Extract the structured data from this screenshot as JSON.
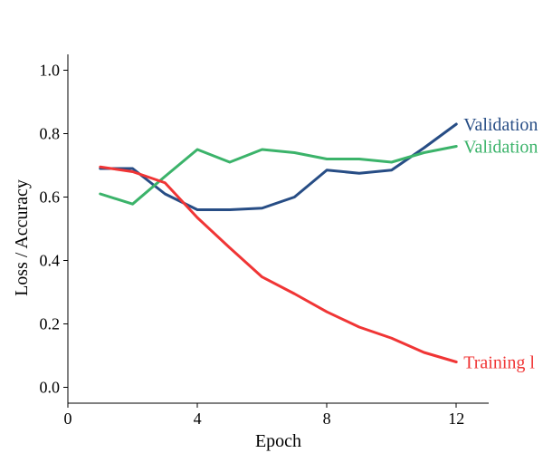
{
  "chart_data": {
    "type": "line",
    "xlabel": "Epoch",
    "ylabel": "Loss / Accuracy",
    "xlim": [
      0,
      13
    ],
    "ylim": [
      -0.05,
      1.05
    ],
    "xticks": [
      {
        "value": 0,
        "label": "0"
      },
      {
        "value": 4,
        "label": "4"
      },
      {
        "value": 8,
        "label": "8"
      },
      {
        "value": 12,
        "label": "12"
      }
    ],
    "yticks": [
      {
        "value": 0.0,
        "label": "0.0"
      },
      {
        "value": 0.2,
        "label": "0.2"
      },
      {
        "value": 0.4,
        "label": "0.4"
      },
      {
        "value": 0.6,
        "label": "0.6"
      },
      {
        "value": 0.8,
        "label": "0.8"
      },
      {
        "value": 1.0,
        "label": "1.0"
      }
    ],
    "grid": false,
    "legend": "inline end labels",
    "x": [
      1,
      2,
      3,
      4,
      5,
      6,
      7,
      8,
      9,
      10,
      11,
      12
    ],
    "series": [
      {
        "name": "Validation",
        "color": "#274d85",
        "values": [
          0.69,
          0.69,
          0.61,
          0.56,
          0.56,
          0.565,
          0.6,
          0.685,
          0.675,
          0.685,
          0.755,
          0.83
        ]
      },
      {
        "name": "Validation",
        "color": "#3bb36a",
        "values": [
          0.61,
          0.578,
          0.665,
          0.75,
          0.71,
          0.75,
          0.74,
          0.72,
          0.72,
          0.71,
          0.74,
          0.76
        ]
      },
      {
        "name": "Training l",
        "color": "#f03535",
        "values": [
          0.695,
          0.68,
          0.645,
          0.535,
          0.44,
          0.348,
          0.295,
          0.238,
          0.19,
          0.155,
          0.11,
          0.08
        ]
      }
    ]
  }
}
